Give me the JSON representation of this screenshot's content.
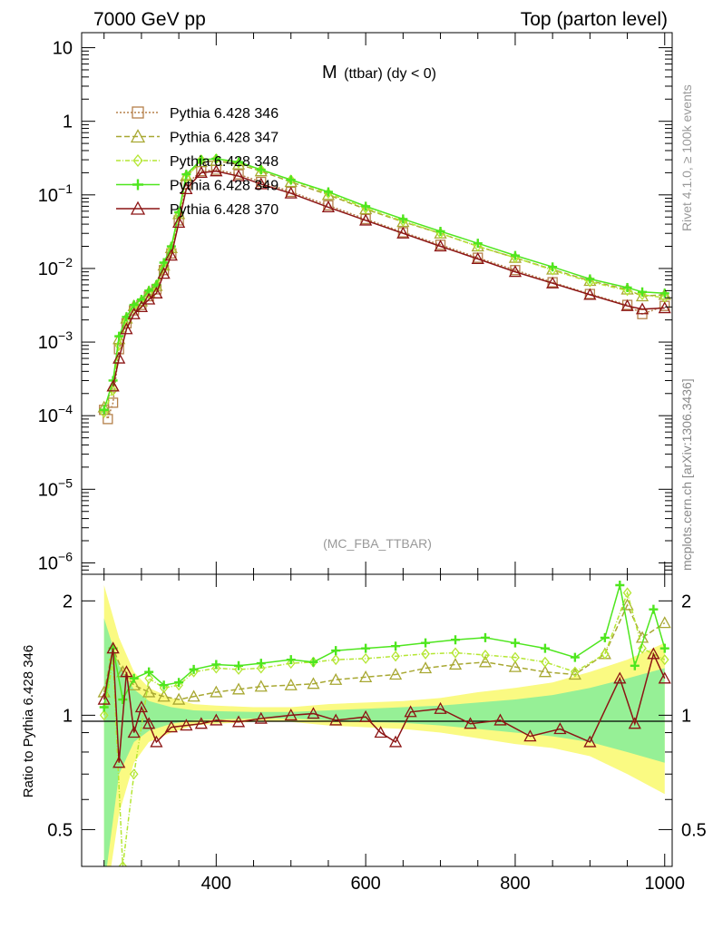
{
  "header": {
    "left_label": "7000 GeV pp",
    "right_label": "Top (parton level)"
  },
  "side_labels": {
    "rivet": "Rivet 4.1.0, ≥ 100k events",
    "mcplots": "mcplots.cern.ch [arXiv:1306.3436]"
  },
  "chart_data": [
    {
      "type": "line",
      "panel": "main",
      "title_main": "M",
      "title_sub": "(ttbar) (dy < 0)",
      "watermark": "(MC_FBA_TTBAR)",
      "xlabel": "",
      "ylabel": "",
      "xlim": [
        220,
        1010
      ],
      "ylim": [
        7e-07,
        16
      ],
      "yscale": "log",
      "y_ticks": [
        {
          "v": 10,
          "base": "10",
          "exp": ""
        },
        {
          "v": 1,
          "base": "1",
          "exp": ""
        },
        {
          "v": 0.1,
          "base": "10",
          "exp": "−1"
        },
        {
          "v": 0.01,
          "base": "10",
          "exp": "−2"
        },
        {
          "v": 0.001,
          "base": "10",
          "exp": "−3"
        },
        {
          "v": 0.0001,
          "base": "10",
          "exp": "−4"
        },
        {
          "v": 1e-05,
          "base": "10",
          "exp": "−5"
        },
        {
          "v": 1e-06,
          "base": "10",
          "exp": "−6"
        }
      ],
      "x_ticks": [
        400,
        600,
        800,
        1000
      ],
      "series": [
        {
          "name": "Pythia 6.428 346",
          "color": "#b5804a",
          "marker": "square",
          "dash": "2,2",
          "x": [
            250,
            255,
            262,
            270,
            280,
            290,
            300,
            310,
            320,
            330,
            340,
            350,
            360,
            380,
            400,
            430,
            460,
            500,
            550,
            600,
            650,
            700,
            750,
            800,
            850,
            900,
            950,
            970,
            1000
          ],
          "y": [
            0.00012,
            9e-05,
            0.00015,
            0.0008,
            0.0018,
            0.0027,
            0.0032,
            0.0042,
            0.0052,
            0.0095,
            0.016,
            0.045,
            0.14,
            0.21,
            0.22,
            0.19,
            0.15,
            0.11,
            0.072,
            0.047,
            0.031,
            0.021,
            0.014,
            0.0095,
            0.0065,
            0.0045,
            0.0032,
            0.0024,
            0.0031
          ]
        },
        {
          "name": "Pythia 6.428 347",
          "color": "#a8a832",
          "marker": "triangle",
          "dash": "6,3",
          "x": [
            250,
            262,
            270,
            280,
            290,
            300,
            310,
            320,
            330,
            340,
            350,
            360,
            380,
            400,
            430,
            460,
            500,
            550,
            600,
            650,
            700,
            750,
            800,
            850,
            900,
            950,
            970,
            1000
          ],
          "y": [
            0.00013,
            0.00025,
            0.0011,
            0.0021,
            0.0031,
            0.0036,
            0.0048,
            0.0058,
            0.011,
            0.019,
            0.055,
            0.18,
            0.28,
            0.29,
            0.26,
            0.21,
            0.15,
            0.1,
            0.064,
            0.043,
            0.03,
            0.02,
            0.014,
            0.0097,
            0.0068,
            0.0052,
            0.0042,
            0.0044
          ]
        },
        {
          "name": "Pythia 6.428 348",
          "color": "#b4e632",
          "marker": "diamond",
          "dash": "5,2,1,2",
          "x": [
            250,
            262,
            270,
            280,
            290,
            300,
            310,
            320,
            330,
            340,
            350,
            360,
            380,
            400,
            430,
            460,
            500,
            550,
            600,
            650,
            700,
            750,
            800,
            850,
            900,
            950,
            970,
            1000
          ],
          "y": [
            0.00011,
            0.00022,
            0.0009,
            0.0019,
            0.0028,
            0.0034,
            0.0045,
            0.0055,
            0.01,
            0.018,
            0.052,
            0.17,
            0.3,
            0.31,
            0.27,
            0.22,
            0.16,
            0.105,
            0.066,
            0.044,
            0.03,
            0.02,
            0.014,
            0.0095,
            0.0066,
            0.005,
            0.0044,
            0.004
          ]
        },
        {
          "name": "Pythia 6.428 349",
          "color": "#4ee61e",
          "marker": "plus",
          "dash": "",
          "x": [
            250,
            262,
            270,
            280,
            290,
            300,
            310,
            320,
            330,
            340,
            350,
            360,
            380,
            400,
            430,
            460,
            500,
            550,
            600,
            650,
            700,
            750,
            800,
            850,
            900,
            950,
            970,
            1000
          ],
          "y": [
            0.00012,
            0.0003,
            0.0012,
            0.0022,
            0.0032,
            0.0038,
            0.005,
            0.006,
            0.012,
            0.02,
            0.058,
            0.19,
            0.3,
            0.31,
            0.28,
            0.22,
            0.16,
            0.11,
            0.07,
            0.047,
            0.032,
            0.022,
            0.015,
            0.0105,
            0.0072,
            0.0055,
            0.0048,
            0.0046
          ]
        },
        {
          "name": "Pythia 6.428 370",
          "color": "#8c1414",
          "marker": "triangle",
          "dash": "",
          "x": [
            262,
            270,
            280,
            290,
            300,
            310,
            320,
            330,
            340,
            350,
            360,
            380,
            400,
            430,
            460,
            500,
            550,
            600,
            650,
            700,
            750,
            800,
            850,
            900,
            950,
            970,
            1000
          ],
          "y": [
            0.00025,
            0.0006,
            0.0015,
            0.0024,
            0.003,
            0.0038,
            0.0046,
            0.0085,
            0.015,
            0.042,
            0.12,
            0.2,
            0.21,
            0.18,
            0.14,
            0.105,
            0.068,
            0.045,
            0.03,
            0.02,
            0.0135,
            0.009,
            0.0063,
            0.0044,
            0.0031,
            0.0028,
            0.0029
          ]
        }
      ]
    },
    {
      "type": "line",
      "panel": "ratio",
      "ylabel": "Ratio to Pythia 6.428 346",
      "xlim": [
        220,
        1010
      ],
      "ylim": [
        0.4,
        2.35
      ],
      "yscale": "log",
      "y_ticks": [
        {
          "v": 0.5,
          "label": "0.5"
        },
        {
          "v": 1,
          "label": "1"
        },
        {
          "v": 2,
          "label": "2"
        }
      ],
      "x_ticks": [
        400,
        600,
        800,
        1000
      ],
      "bands": [
        {
          "name": "reference uncertainty (outer)",
          "color": "#fafa82",
          "x": [
            250,
            270,
            290,
            310,
            340,
            370,
            400,
            450,
            500,
            550,
            600,
            650,
            700,
            750,
            800,
            850,
            900,
            950,
            1000
          ],
          "lo": [
            0.3,
            0.55,
            0.75,
            0.85,
            0.9,
            0.94,
            0.95,
            0.96,
            0.96,
            0.94,
            0.93,
            0.92,
            0.9,
            0.87,
            0.84,
            0.82,
            0.78,
            0.7,
            0.62
          ],
          "hi": [
            2.2,
            1.6,
            1.3,
            1.18,
            1.11,
            1.07,
            1.06,
            1.05,
            1.05,
            1.07,
            1.08,
            1.09,
            1.11,
            1.15,
            1.18,
            1.22,
            1.3,
            1.4,
            1.55
          ]
        },
        {
          "name": "reference uncertainty (inner)",
          "color": "#96f096",
          "x": [
            250,
            270,
            290,
            310,
            340,
            370,
            400,
            450,
            500,
            550,
            600,
            650,
            700,
            750,
            800,
            850,
            900,
            950,
            1000
          ],
          "lo": [
            0.35,
            0.7,
            0.85,
            0.91,
            0.95,
            0.97,
            0.975,
            0.98,
            0.98,
            0.97,
            0.96,
            0.955,
            0.94,
            0.92,
            0.9,
            0.88,
            0.85,
            0.8,
            0.75
          ],
          "hi": [
            1.8,
            1.35,
            1.17,
            1.09,
            1.05,
            1.03,
            1.025,
            1.02,
            1.02,
            1.03,
            1.04,
            1.05,
            1.06,
            1.08,
            1.1,
            1.13,
            1.18,
            1.25,
            1.33
          ]
        }
      ],
      "series": [
        {
          "name": "Pythia 6.428 347",
          "color": "#a8a832",
          "marker": "triangle",
          "dash": "6,3",
          "x": [
            250,
            262,
            275,
            290,
            310,
            330,
            350,
            370,
            400,
            430,
            460,
            500,
            530,
            560,
            600,
            640,
            680,
            720,
            760,
            800,
            840,
            880,
            920,
            950,
            970,
            1000
          ],
          "y": [
            1.15,
            1.5,
            1.3,
            1.2,
            1.15,
            1.12,
            1.1,
            1.12,
            1.15,
            1.17,
            1.19,
            1.2,
            1.21,
            1.24,
            1.26,
            1.28,
            1.33,
            1.36,
            1.38,
            1.34,
            1.3,
            1.28,
            1.45,
            1.95,
            1.6,
            1.75
          ]
        },
        {
          "name": "Pythia 6.428 348",
          "color": "#b4e632",
          "marker": "diamond",
          "dash": "5,2,1,2",
          "x": [
            250,
            262,
            275,
            290,
            310,
            330,
            350,
            370,
            400,
            430,
            460,
            500,
            530,
            560,
            600,
            640,
            680,
            720,
            760,
            800,
            840,
            880,
            920,
            950,
            970,
            1000
          ],
          "y": [
            1.0,
            1.4,
            0.4,
            0.7,
            1.25,
            1.18,
            1.2,
            1.3,
            1.33,
            1.32,
            1.33,
            1.37,
            1.38,
            1.4,
            1.41,
            1.43,
            1.45,
            1.46,
            1.44,
            1.42,
            1.38,
            1.3,
            1.45,
            2.1,
            1.5,
            1.4
          ]
        },
        {
          "name": "Pythia 6.428 349",
          "color": "#4ee61e",
          "marker": "plus",
          "dash": "",
          "x": [
            250,
            262,
            275,
            290,
            310,
            330,
            350,
            370,
            400,
            430,
            460,
            500,
            530,
            560,
            600,
            640,
            680,
            720,
            760,
            800,
            840,
            880,
            920,
            940,
            960,
            985,
            1000
          ],
          "y": [
            1.05,
            1.5,
            1.1,
            1.25,
            1.3,
            1.2,
            1.22,
            1.32,
            1.36,
            1.35,
            1.37,
            1.4,
            1.38,
            1.48,
            1.5,
            1.52,
            1.55,
            1.58,
            1.6,
            1.55,
            1.5,
            1.42,
            1.6,
            2.2,
            1.35,
            1.9,
            1.5
          ]
        },
        {
          "name": "Pythia 6.428 370",
          "color": "#8c1414",
          "marker": "triangle",
          "dash": "",
          "x": [
            250,
            262,
            270,
            280,
            290,
            300,
            310,
            320,
            340,
            360,
            380,
            400,
            430,
            460,
            500,
            530,
            560,
            600,
            620,
            640,
            660,
            700,
            740,
            780,
            820,
            860,
            900,
            940,
            960,
            985,
            1000
          ],
          "y": [
            1.1,
            1.5,
            0.75,
            1.3,
            0.9,
            1.05,
            0.95,
            0.85,
            0.93,
            0.94,
            0.95,
            0.97,
            0.96,
            0.98,
            1.0,
            1.01,
            0.97,
            0.99,
            0.9,
            0.85,
            1.02,
            1.04,
            0.95,
            0.97,
            0.88,
            0.92,
            0.85,
            1.25,
            0.95,
            1.45,
            1.25
          ]
        }
      ]
    }
  ]
}
